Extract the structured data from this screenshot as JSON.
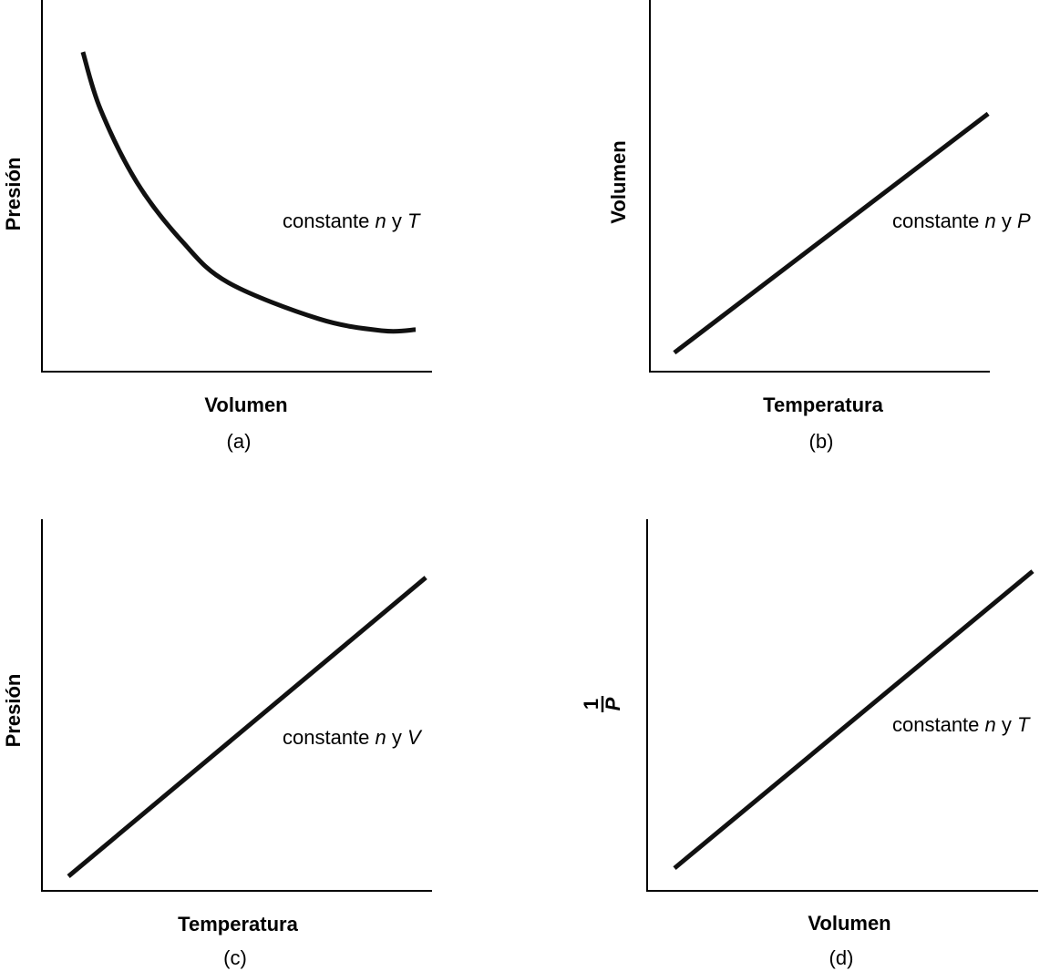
{
  "chart_data": [
    {
      "type": "line",
      "panel_label": "(a)",
      "xlabel": "Volumen",
      "ylabel": "Presión",
      "annotation": {
        "prefix": "constante ",
        "var1": "n",
        "mid": " y ",
        "var2": "T"
      },
      "xlim": [
        0,
        10
      ],
      "ylim": [
        0,
        10
      ],
      "grid": false,
      "series": [
        {
          "x": [
            1.05,
            1.5,
            2.43,
            3.6,
            4.77,
            7.1,
            8.74,
            9.58
          ],
          "y": [
            8.6,
            7.06,
            5.1,
            3.5,
            2.4,
            1.42,
            1.1,
            1.13
          ]
        }
      ],
      "line_color": "#111111"
    },
    {
      "type": "line",
      "panel_label": "(b)",
      "xlabel": "Temperatura",
      "ylabel": "Volumen",
      "annotation": {
        "prefix": "constante ",
        "var1": "n",
        "mid": " y ",
        "var2": "P"
      },
      "xlim": [
        0,
        10
      ],
      "ylim": [
        0,
        10
      ],
      "grid": false,
      "series": [
        {
          "x": [
            0.72,
            9.95
          ],
          "y": [
            0.51,
            6.94
          ]
        }
      ],
      "line_color": "#111111"
    },
    {
      "type": "line",
      "panel_label": "(c)",
      "xlabel": "Temperatura",
      "ylabel": "Presión",
      "annotation": {
        "prefix": "constante ",
        "var1": "n",
        "mid": " y ",
        "var2": "V"
      },
      "xlim": [
        0,
        10
      ],
      "ylim": [
        0,
        10
      ],
      "grid": false,
      "series": [
        {
          "x": [
            0.68,
            9.84
          ],
          "y": [
            0.39,
            8.43
          ]
        }
      ],
      "line_color": "#111111"
    },
    {
      "type": "line",
      "panel_label": "(d)",
      "xlabel": "Volumen",
      "ylabel": {
        "numerator": "1",
        "denominator": "P"
      },
      "annotation": {
        "prefix": "constante ",
        "var1": "n",
        "mid": " y ",
        "var2": "T"
      },
      "xlim": [
        0,
        10
      ],
      "ylim": [
        0,
        10
      ],
      "grid": false,
      "series": [
        {
          "x": [
            0.7,
            9.86
          ],
          "y": [
            0.61,
            8.6
          ]
        }
      ],
      "line_color": "#111111"
    }
  ]
}
